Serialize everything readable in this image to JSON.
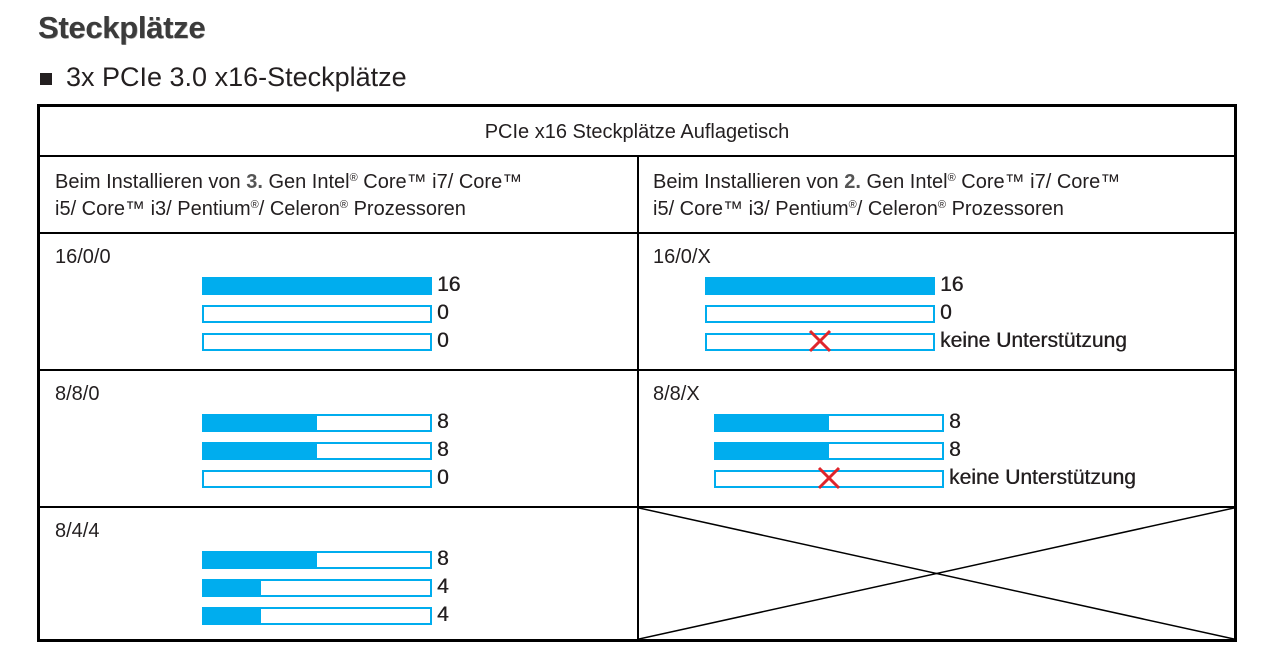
{
  "title": "Steckplätze",
  "bullet": "3x PCIe 3.0 x16-Steckplätze",
  "table": {
    "title": "PCIe x16 Steckplätze Auflagetisch",
    "columns": [
      {
        "prefix": "Beim Installieren von ",
        "gen": "3.",
        "gen_label": " Gen Intel",
        "reg": "®",
        "line1_rest": " Core™ i7/ Core™",
        "line2_a": "i5/ Core™ i3/ Pentium",
        "line2_reg": "®",
        "line2_b": "/ Celeron",
        "line2_reg2": "®",
        "line2_c": " Prozessoren"
      },
      {
        "prefix": "Beim Installieren von ",
        "gen": "2.",
        "gen_label": " Gen Intel",
        "reg": "®",
        "line1_rest": " Core™ i7/ Core™",
        "line2_a": "i5/ Core™ i3/ Pentium",
        "line2_reg": "®",
        "line2_b": "/ Celeron",
        "line2_reg2": "®",
        "line2_c": " Prozessoren"
      }
    ],
    "configs": [
      {
        "left": {
          "label": "16/0/0",
          "lanes": [
            {
              "fill": 1.0,
              "value": "16",
              "unsupported": false
            },
            {
              "fill": 0.0,
              "value": "0",
              "unsupported": false
            },
            {
              "fill": 0.0,
              "value": "0",
              "unsupported": false
            }
          ]
        },
        "right": {
          "label": "16/0/X",
          "lanes": [
            {
              "fill": 1.0,
              "value": "16",
              "unsupported": false
            },
            {
              "fill": 0.0,
              "value": "0",
              "unsupported": false
            },
            {
              "fill": 0.0,
              "value": "keine Unterstützung",
              "unsupported": true
            }
          ]
        }
      },
      {
        "left": {
          "label": "8/8/0",
          "lanes": [
            {
              "fill": 0.5,
              "value": "8",
              "unsupported": false
            },
            {
              "fill": 0.5,
              "value": "8",
              "unsupported": false
            },
            {
              "fill": 0.0,
              "value": "0",
              "unsupported": false
            }
          ]
        },
        "right": {
          "label": "8/8/X",
          "lanes": [
            {
              "fill": 0.5,
              "value": "8",
              "unsupported": false
            },
            {
              "fill": 0.5,
              "value": "8",
              "unsupported": false
            },
            {
              "fill": 0.0,
              "value": "keine Unterstützung",
              "unsupported": true
            }
          ]
        }
      },
      {
        "left": {
          "label": "8/4/4",
          "lanes": [
            {
              "fill": 0.5,
              "value": "8",
              "unsupported": false
            },
            {
              "fill": 0.25,
              "value": "4",
              "unsupported": false
            },
            {
              "fill": 0.25,
              "value": "4",
              "unsupported": false
            }
          ]
        },
        "right": null
      }
    ]
  },
  "colors": {
    "lane_blue": "#00adee",
    "unsupported_x": "#e0252b",
    "border": "#000000"
  }
}
